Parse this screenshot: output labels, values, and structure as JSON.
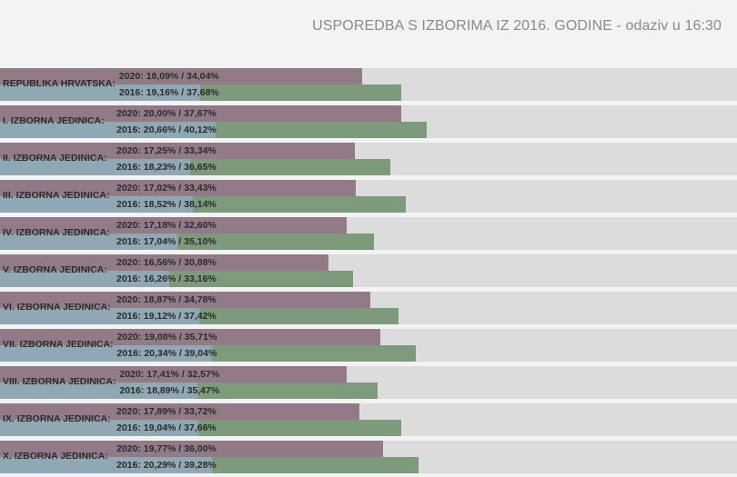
{
  "title": "USPOREDBA S IZBORIMA IZ 2016. GODINE - odaziv u 16:30",
  "colors": {
    "background": "#f3f3f3",
    "track": "#dcdcdc",
    "bar_2020": "#927b87",
    "bar_2016": "#7e9a7d",
    "bar_2016_left": "#8fa8b4",
    "title": "#8b8b8b"
  },
  "chart_data": {
    "type": "bar",
    "orientation": "horizontal",
    "title": "USPOREDBA S IZBORIMA IZ 2016. GODINE - odaziv u 16:30",
    "xlim": [
      0,
      70
    ],
    "grid": false,
    "categories": [
      "REPUBLIKA HRVATSKA:",
      "I. IZBORNA JEDINICA:",
      "II. IZBORNA JEDINICA:",
      "III. IZBORNA JEDINICA:",
      "IV. IZBORNA JEDINICA:",
      "V. IZBORNA JEDINICA:",
      "VI. IZBORNA JEDINICA:",
      "VII. IZBORNA JEDINICA:",
      "VIII. IZBORNA JEDINICA:",
      "IX. IZBORNA JEDINICA:",
      "X. IZBORNA JEDINICA:"
    ],
    "series": [
      {
        "name": "2020",
        "values_first": [
          18.09,
          20.0,
          17.25,
          17.02,
          17.18,
          16.56,
          18.87,
          19.08,
          17.41,
          17.89,
          19.77
        ],
        "values": [
          34.04,
          37.67,
          33.34,
          33.43,
          32.6,
          30.88,
          34.78,
          35.71,
          32.57,
          33.72,
          36.0
        ],
        "labels": [
          "2020: 18,09% / 34,04%",
          "2020: 20,00% / 37,67%",
          "2020: 17,25% / 33,34%",
          "2020: 17,02% / 33,43%",
          "2020: 17,18% / 32,60%",
          "2020: 16,56% / 30,88%",
          "2020: 18,87% / 34,78%",
          "2020: 19,08% / 35,71%",
          "2020: 17,41% / 32,57%",
          "2020: 17,89% / 33,72%",
          "2020: 19,77% / 36,00%"
        ]
      },
      {
        "name": "2016",
        "values_first": [
          19.16,
          20.66,
          18.23,
          18.52,
          17.04,
          16.26,
          19.12,
          20.34,
          18.89,
          19.04,
          20.29
        ],
        "values": [
          37.68,
          40.12,
          36.65,
          38.14,
          35.1,
          33.16,
          37.42,
          39.04,
          35.47,
          37.66,
          39.28
        ],
        "labels": [
          "2016: 19,16% / 37,68%",
          "2016: 20,66% / 40,12%",
          "2016: 18,23% / 36,65%",
          "2016: 18,52% / 38,14%",
          "2016: 17,04% / 35,10%",
          "2016: 16,26% / 33,16%",
          "2016: 19,12% / 37,42%",
          "2016: 20,34% / 39,04%",
          "2016: 18,89% / 35,47%",
          "2016: 19,04% / 37,66%",
          "2016: 20,29% / 39,28%"
        ]
      }
    ]
  }
}
